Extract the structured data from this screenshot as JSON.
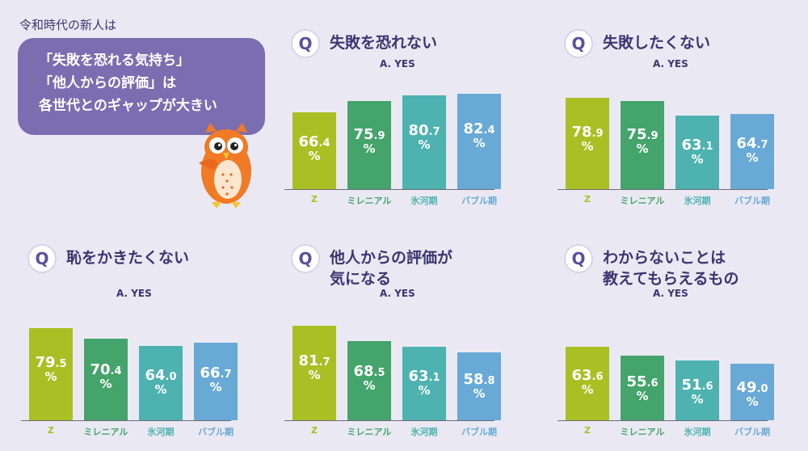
{
  "intro": {
    "label": "令和時代の新人は",
    "bubble_lines": [
      "「失敗を恐れる気持ち」",
      "「他人からの評価」は",
      "各世代とのギャップが大きい"
    ]
  },
  "colors": {
    "background": "#eae9f3",
    "bubble": "#7a6db0",
    "title": "#3d3470",
    "Z": "#a8c023",
    "ミレニアル": "#44a46b",
    "氷河期": "#4db2b0",
    "バブル期": "#68a9d6"
  },
  "chart_data": [
    {
      "type": "bar",
      "title": "失敗を恐れない",
      "subtitle": "A. YES",
      "categories": [
        "Z",
        "ミレニアル",
        "氷河期",
        "バブル期"
      ],
      "values": [
        66.4,
        75.9,
        80.7,
        82.4
      ],
      "unit": "%"
    },
    {
      "type": "bar",
      "title": "失敗したくない",
      "subtitle": "A. YES",
      "categories": [
        "Z",
        "ミレニアル",
        "氷河期",
        "バブル期"
      ],
      "values": [
        78.9,
        75.9,
        63.1,
        64.7
      ],
      "unit": "%"
    },
    {
      "type": "bar",
      "title": "恥をかきたくない",
      "subtitle": "A. YES",
      "categories": [
        "Z",
        "ミレニアル",
        "氷河期",
        "バブル期"
      ],
      "values": [
        79.5,
        70.4,
        64.0,
        66.7
      ],
      "unit": "%"
    },
    {
      "type": "bar",
      "title": "他人からの評価が\n気になる",
      "subtitle": "A. YES",
      "categories": [
        "Z",
        "ミレニアル",
        "氷河期",
        "バブル期"
      ],
      "values": [
        81.7,
        68.5,
        63.1,
        58.8
      ],
      "unit": "%"
    },
    {
      "type": "bar",
      "title": "わからないことは\n教えてもらえるもの",
      "subtitle": "A. YES",
      "categories": [
        "Z",
        "ミレニアル",
        "氷河期",
        "バブル期"
      ],
      "values": [
        63.6,
        55.6,
        51.6,
        49.0
      ],
      "unit": "%"
    }
  ]
}
